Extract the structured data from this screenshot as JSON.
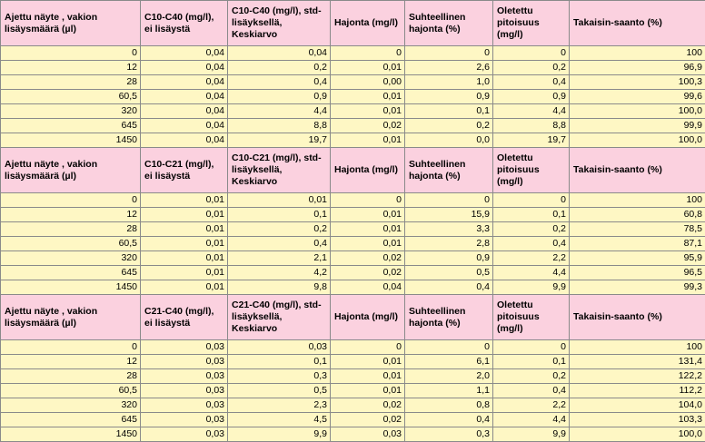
{
  "sections": [
    {
      "headers": [
        "Ajettu näyte , vakion lisäysmäärä (µl)",
        "C10-C40 (mg/l), ei lisäystä",
        "C10-C40 (mg/l), std-lisäyksellä, Keskiarvo",
        "Hajonta (mg/l)",
        "Suhteellinen hajonta (%)",
        "Oletettu pitoisuus (mg/l)",
        "Takaisin-saanto (%)"
      ],
      "rows": [
        [
          "0",
          "0,04",
          "0,04",
          "0",
          "0",
          "0",
          "100"
        ],
        [
          "12",
          "0,04",
          "0,2",
          "0,01",
          "2,6",
          "0,2",
          "96,9"
        ],
        [
          "28",
          "0,04",
          "0,4",
          "0,00",
          "1,0",
          "0,4",
          "100,3"
        ],
        [
          "60,5",
          "0,04",
          "0,9",
          "0,01",
          "0,9",
          "0,9",
          "99,6"
        ],
        [
          "320",
          "0,04",
          "4,4",
          "0,01",
          "0,1",
          "4,4",
          "100,0"
        ],
        [
          "645",
          "0,04",
          "8,8",
          "0,02",
          "0,2",
          "8,8",
          "99,9"
        ],
        [
          "1450",
          "0,04",
          "19,7",
          "0,01",
          "0,0",
          "19,7",
          "100,0"
        ]
      ]
    },
    {
      "headers": [
        "Ajettu näyte , vakion lisäysmäärä (µl)",
        "C10-C21 (mg/l), ei lisäystä",
        "C10-C21 (mg/l), std-lisäyksellä, Keskiarvo",
        "Hajonta (mg/l)",
        "Suhteellinen hajonta (%)",
        "Oletettu pitoisuus (mg/l)",
        "Takaisin-saanto (%)"
      ],
      "rows": [
        [
          "0",
          "0,01",
          "0,01",
          "0",
          "0",
          "0",
          "100"
        ],
        [
          "12",
          "0,01",
          "0,1",
          "0,01",
          "15,9",
          "0,1",
          "60,8"
        ],
        [
          "28",
          "0,01",
          "0,2",
          "0,01",
          "3,3",
          "0,2",
          "78,5"
        ],
        [
          "60,5",
          "0,01",
          "0,4",
          "0,01",
          "2,8",
          "0,4",
          "87,1"
        ],
        [
          "320",
          "0,01",
          "2,1",
          "0,02",
          "0,9",
          "2,2",
          "95,9"
        ],
        [
          "645",
          "0,01",
          "4,2",
          "0,02",
          "0,5",
          "4,4",
          "96,5"
        ],
        [
          "1450",
          "0,01",
          "9,8",
          "0,04",
          "0,4",
          "9,9",
          "99,3"
        ]
      ]
    },
    {
      "headers": [
        "Ajettu näyte , vakion lisäysmäärä (µl)",
        "C21-C40 (mg/l), ei lisäystä",
        "C21-C40 (mg/l), std-lisäyksellä, Keskiarvo",
        "Hajonta (mg/l)",
        "Suhteellinen hajonta (%)",
        "Oletettu pitoisuus (mg/l)",
        "Takaisin-saanto (%)"
      ],
      "rows": [
        [
          "0",
          "0,03",
          "0,03",
          "0",
          "0",
          "0",
          "100"
        ],
        [
          "12",
          "0,03",
          "0,1",
          "0,01",
          "6,1",
          "0,1",
          "131,4"
        ],
        [
          "28",
          "0,03",
          "0,3",
          "0,01",
          "2,0",
          "0,2",
          "122,2"
        ],
        [
          "60,5",
          "0,03",
          "0,5",
          "0,01",
          "1,1",
          "0,4",
          "112,2"
        ],
        [
          "320",
          "0,03",
          "2,3",
          "0,02",
          "0,8",
          "2,2",
          "104,0"
        ],
        [
          "645",
          "0,03",
          "4,5",
          "0,02",
          "0,4",
          "4,4",
          "103,3"
        ],
        [
          "1450",
          "0,03",
          "9,9",
          "0,03",
          "0,3",
          "9,9",
          "100,0"
        ]
      ]
    }
  ],
  "colors": {
    "header_fill": "#fbd1df",
    "cell_fill": "#fef7c4",
    "grid": "#8a8a8a"
  }
}
